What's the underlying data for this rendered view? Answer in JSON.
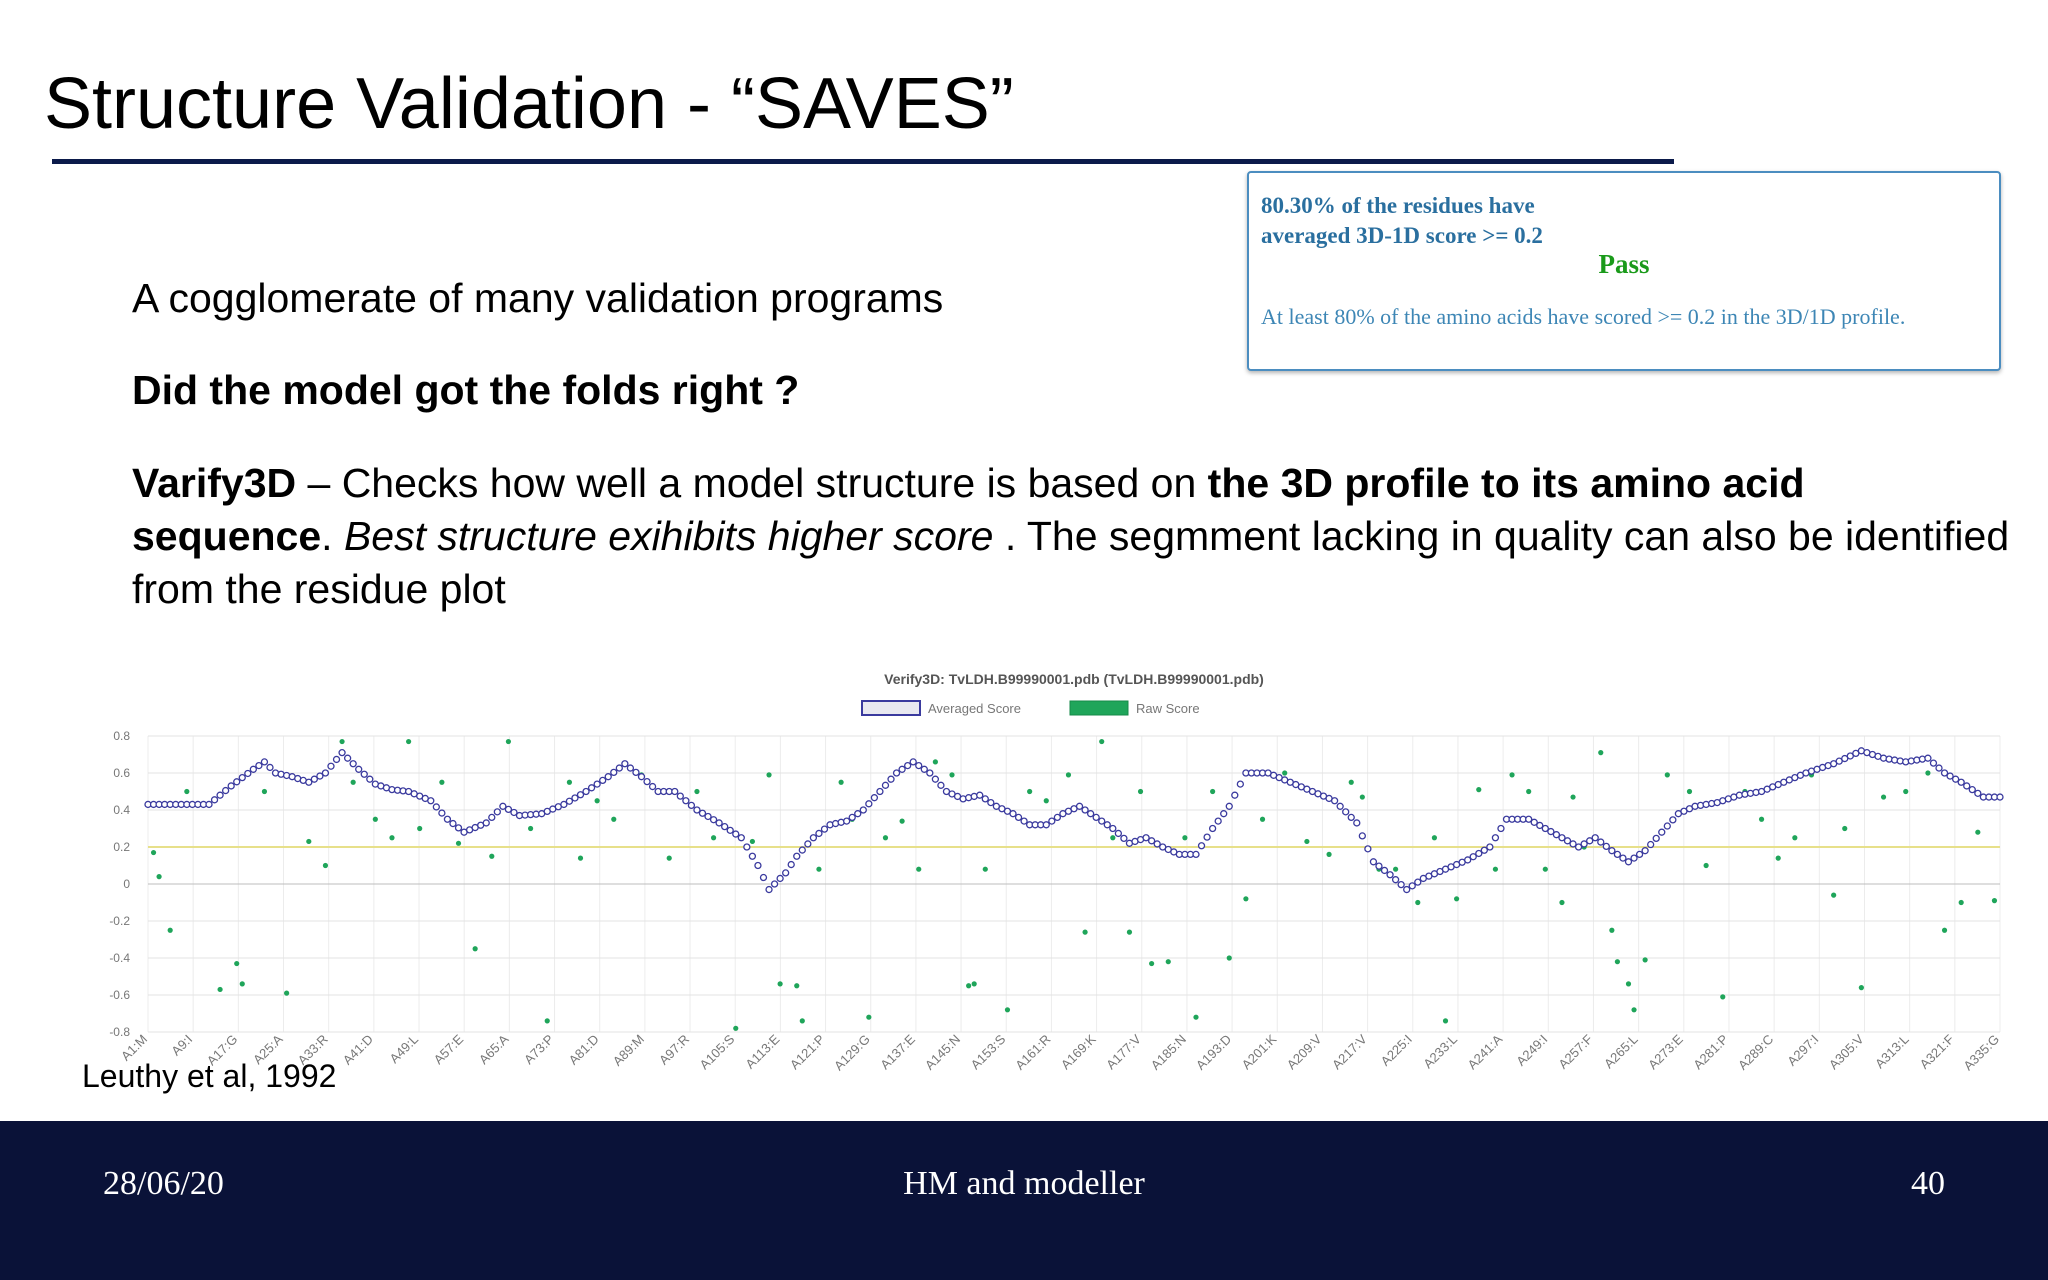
{
  "slide": {
    "title": "Structure Validation - “SAVES”",
    "para1": "A cogglomerate of many validation programs",
    "para2": "Did the model got the folds right ?",
    "para3": {
      "s1": "Varify3D",
      "s2": " – Checks how well a model structure is based on ",
      "s3": "the 3D profile to its amino acid sequence",
      "s4": ". ",
      "s5": "Best structure exihibits higher score",
      "s6": " . The segmment lacking in quality can also be identified from the residue plot"
    },
    "citation": "Leuthy et al, 1992"
  },
  "result_box": {
    "line1": "80.30% of the residues have",
    "line2": "averaged 3D-1D score >= 0.2",
    "status": "Pass",
    "note": "At least 80% of the amino acids have scored >= 0.2 in the 3D/1D profile."
  },
  "footer": {
    "date": "28/06/20",
    "center": "HM and modeller",
    "page": "40"
  },
  "chart_data": {
    "type": "scatter",
    "title": "Verify3D: TvLDH.B99990001.pdb (TvLDH.B99990001.pdb)",
    "xlabel": "",
    "ylabel": "",
    "ylim": [
      -0.8,
      0.8
    ],
    "yticks": [
      "0.8",
      "0.6",
      "0.4",
      "0.2",
      "0",
      "-0.2",
      "-0.4",
      "-0.6",
      "-0.8"
    ],
    "xtick_labels": [
      "A1:M",
      "A9:I",
      "A17:G",
      "A25:A",
      "A33:R",
      "A41:D",
      "A49:L",
      "A57:E",
      "A65:A",
      "A73:P",
      "A81:D",
      "A89:M",
      "A97:R",
      "A105:S",
      "A113:E",
      "A121:P",
      "A129:G",
      "A137:E",
      "A145:N",
      "A153:S",
      "A161:R",
      "A169:K",
      "A177:V",
      "A185:N",
      "A193:D",
      "A201:K",
      "A209:V",
      "A217:V",
      "A225:I",
      "A233:L",
      "A241:A",
      "A249:I",
      "A257:F",
      "A265:L",
      "A273:E",
      "A281:P",
      "A289:C",
      "A297:I",
      "A305:V",
      "A313:L",
      "A321:F",
      "A335:G"
    ],
    "threshold": 0.2,
    "x_range": [
      1,
      335
    ],
    "grid": true,
    "legend_position": "top-center",
    "series": [
      {
        "name": "Averaged Score",
        "color": "#3a3a9e",
        "marker": "circle",
        "points": [
          [
            1,
            0.43
          ],
          [
            12,
            0.43
          ],
          [
            16,
            0.53
          ],
          [
            20,
            0.62
          ],
          [
            22,
            0.66
          ],
          [
            24,
            0.6
          ],
          [
            27,
            0.58
          ],
          [
            30,
            0.55
          ],
          [
            33,
            0.6
          ],
          [
            36,
            0.71
          ],
          [
            39,
            0.62
          ],
          [
            42,
            0.54
          ],
          [
            45,
            0.51
          ],
          [
            48,
            0.5
          ],
          [
            52,
            0.45
          ],
          [
            55,
            0.35
          ],
          [
            58,
            0.28
          ],
          [
            62,
            0.33
          ],
          [
            65,
            0.42
          ],
          [
            68,
            0.37
          ],
          [
            72,
            0.38
          ],
          [
            76,
            0.43
          ],
          [
            80,
            0.5
          ],
          [
            84,
            0.58
          ],
          [
            87,
            0.65
          ],
          [
            90,
            0.58
          ],
          [
            93,
            0.5
          ],
          [
            96,
            0.5
          ],
          [
            100,
            0.4
          ],
          [
            104,
            0.33
          ],
          [
            108,
            0.25
          ],
          [
            111,
            0.1
          ],
          [
            113,
            -0.03
          ],
          [
            116,
            0.06
          ],
          [
            118,
            0.15
          ],
          [
            121,
            0.25
          ],
          [
            124,
            0.32
          ],
          [
            127,
            0.34
          ],
          [
            130,
            0.4
          ],
          [
            133,
            0.5
          ],
          [
            136,
            0.6
          ],
          [
            139,
            0.66
          ],
          [
            142,
            0.6
          ],
          [
            145,
            0.5
          ],
          [
            148,
            0.46
          ],
          [
            151,
            0.48
          ],
          [
            154,
            0.42
          ],
          [
            157,
            0.38
          ],
          [
            160,
            0.32
          ],
          [
            163,
            0.32
          ],
          [
            166,
            0.38
          ],
          [
            169,
            0.42
          ],
          [
            172,
            0.36
          ],
          [
            175,
            0.3
          ],
          [
            178,
            0.22
          ],
          [
            181,
            0.25
          ],
          [
            184,
            0.2
          ],
          [
            187,
            0.16
          ],
          [
            190,
            0.16
          ],
          [
            193,
            0.3
          ],
          [
            196,
            0.42
          ],
          [
            199,
            0.6
          ],
          [
            203,
            0.6
          ],
          [
            207,
            0.55
          ],
          [
            211,
            0.5
          ],
          [
            215,
            0.45
          ],
          [
            219,
            0.33
          ],
          [
            222,
            0.12
          ],
          [
            225,
            0.05
          ],
          [
            228,
            -0.03
          ],
          [
            231,
            0.03
          ],
          [
            235,
            0.08
          ],
          [
            239,
            0.13
          ],
          [
            243,
            0.2
          ],
          [
            246,
            0.35
          ],
          [
            250,
            0.35
          ],
          [
            253,
            0.3
          ],
          [
            256,
            0.25
          ],
          [
            259,
            0.2
          ],
          [
            262,
            0.25
          ],
          [
            265,
            0.18
          ],
          [
            268,
            0.12
          ],
          [
            271,
            0.18
          ],
          [
            274,
            0.28
          ],
          [
            277,
            0.38
          ],
          [
            280,
            0.42
          ],
          [
            284,
            0.44
          ],
          [
            288,
            0.48
          ],
          [
            292,
            0.5
          ],
          [
            296,
            0.55
          ],
          [
            300,
            0.6
          ],
          [
            305,
            0.65
          ],
          [
            310,
            0.72
          ],
          [
            314,
            0.68
          ],
          [
            318,
            0.66
          ],
          [
            322,
            0.68
          ],
          [
            325,
            0.6
          ],
          [
            328,
            0.55
          ],
          [
            332,
            0.47
          ],
          [
            335,
            0.47
          ]
        ]
      },
      {
        "name": "Raw Score",
        "color": "#1fa55a",
        "marker": "dot",
        "points": [
          [
            2,
            0.17
          ],
          [
            3,
            0.04
          ],
          [
            5,
            -0.25
          ],
          [
            8,
            0.5
          ],
          [
            14,
            -0.57
          ],
          [
            17,
            -0.43
          ],
          [
            18,
            -0.54
          ],
          [
            22,
            0.5
          ],
          [
            26,
            -0.59
          ],
          [
            30,
            0.23
          ],
          [
            33,
            0.1
          ],
          [
            36,
            0.77
          ],
          [
            38,
            0.55
          ],
          [
            42,
            0.35
          ],
          [
            45,
            0.25
          ],
          [
            48,
            0.77
          ],
          [
            50,
            0.3
          ],
          [
            54,
            0.55
          ],
          [
            57,
            0.22
          ],
          [
            60,
            -0.35
          ],
          [
            63,
            0.15
          ],
          [
            66,
            0.77
          ],
          [
            70,
            0.3
          ],
          [
            73,
            -0.74
          ],
          [
            77,
            0.55
          ],
          [
            79,
            0.14
          ],
          [
            82,
            0.45
          ],
          [
            85,
            0.35
          ],
          [
            90,
            0.59
          ],
          [
            95,
            0.14
          ],
          [
            100,
            0.5
          ],
          [
            103,
            0.25
          ],
          [
            107,
            -0.78
          ],
          [
            110,
            0.23
          ],
          [
            113,
            0.59
          ],
          [
            115,
            -0.54
          ],
          [
            118,
            -0.55
          ],
          [
            119,
            -0.74
          ],
          [
            122,
            0.08
          ],
          [
            126,
            0.55
          ],
          [
            128,
            0.35
          ],
          [
            131,
            -0.72
          ],
          [
            134,
            0.25
          ],
          [
            137,
            0.34
          ],
          [
            140,
            0.08
          ],
          [
            143,
            0.66
          ],
          [
            146,
            0.59
          ],
          [
            149,
            -0.55
          ],
          [
            150,
            -0.54
          ],
          [
            152,
            0.08
          ],
          [
            156,
            -0.68
          ],
          [
            160,
            0.5
          ],
          [
            163,
            0.45
          ],
          [
            167,
            0.59
          ],
          [
            170,
            -0.26
          ],
          [
            173,
            0.77
          ],
          [
            175,
            0.25
          ],
          [
            178,
            -0.26
          ],
          [
            180,
            0.5
          ],
          [
            182,
            -0.43
          ],
          [
            185,
            -0.42
          ],
          [
            188,
            0.25
          ],
          [
            190,
            -0.72
          ],
          [
            193,
            0.5
          ],
          [
            196,
            -0.4
          ],
          [
            199,
            -0.08
          ],
          [
            202,
            0.35
          ],
          [
            206,
            0.6
          ],
          [
            210,
            0.23
          ],
          [
            214,
            0.16
          ],
          [
            218,
            0.55
          ],
          [
            220,
            0.47
          ],
          [
            223,
            0.08
          ],
          [
            226,
            0.08
          ],
          [
            230,
            -0.1
          ],
          [
            233,
            0.25
          ],
          [
            235,
            -0.74
          ],
          [
            237,
            -0.08
          ],
          [
            241,
            0.51
          ],
          [
            244,
            0.08
          ],
          [
            247,
            0.59
          ],
          [
            250,
            0.5
          ],
          [
            253,
            0.08
          ],
          [
            256,
            -0.1
          ],
          [
            258,
            0.47
          ],
          [
            260,
            0.2
          ],
          [
            263,
            0.71
          ],
          [
            265,
            -0.25
          ],
          [
            266,
            -0.42
          ],
          [
            268,
            -0.54
          ],
          [
            269,
            -0.68
          ],
          [
            271,
            -0.41
          ],
          [
            275,
            0.59
          ],
          [
            279,
            0.5
          ],
          [
            282,
            0.1
          ],
          [
            285,
            -0.61
          ],
          [
            289,
            0.5
          ],
          [
            292,
            0.35
          ],
          [
            295,
            0.14
          ],
          [
            298,
            0.25
          ],
          [
            301,
            0.59
          ],
          [
            305,
            -0.06
          ],
          [
            307,
            0.3
          ],
          [
            310,
            -0.56
          ],
          [
            314,
            0.47
          ],
          [
            318,
            0.5
          ],
          [
            322,
            0.6
          ],
          [
            325,
            -0.25
          ],
          [
            328,
            -0.1
          ],
          [
            331,
            0.28
          ],
          [
            334,
            -0.09
          ]
        ]
      }
    ]
  }
}
